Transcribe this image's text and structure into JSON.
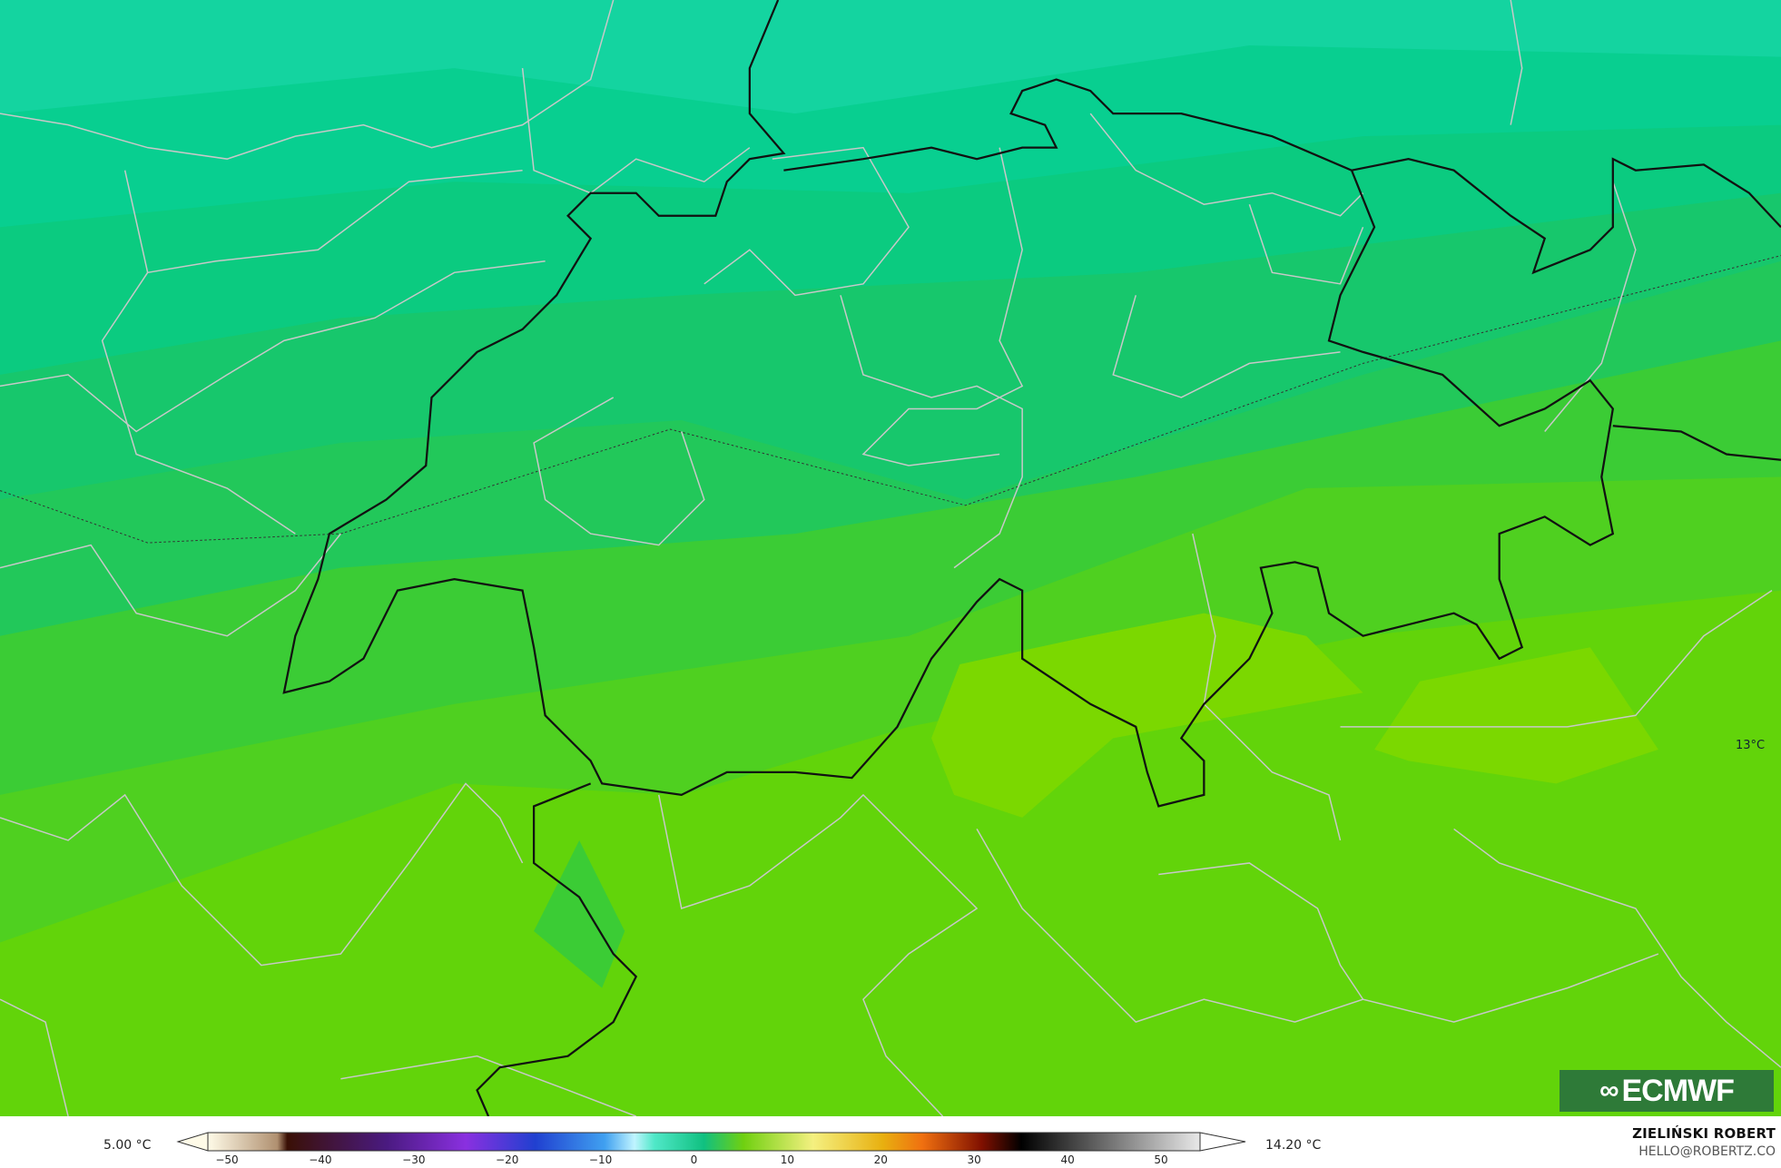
{
  "map": {
    "contour_label": "13°C",
    "logo_text": "ECMWF",
    "colors": {
      "ocean_teal": "#14d4a0",
      "band_1": "#08cf90",
      "band_2": "#0bcb80",
      "band_3": "#17c76c",
      "band_4": "#22c85a",
      "band_5": "#3bcc35",
      "band_6": "#4fd020",
      "band_7": "#62d40a",
      "warm_patch": "#7bd800",
      "national_border": "#111111",
      "admin_border": "#c8c8c8"
    }
  },
  "legend": {
    "min_label": "5.00 °C",
    "max_label": "14.20 °C",
    "ticks": [
      "−50",
      "−40",
      "−30",
      "−20",
      "−10",
      "0",
      "10",
      "20",
      "30",
      "40",
      "50"
    ]
  },
  "author": {
    "name": "ZIELIŃSKI ROBERT",
    "email": "HELLO@ROBERTZ.CO"
  }
}
